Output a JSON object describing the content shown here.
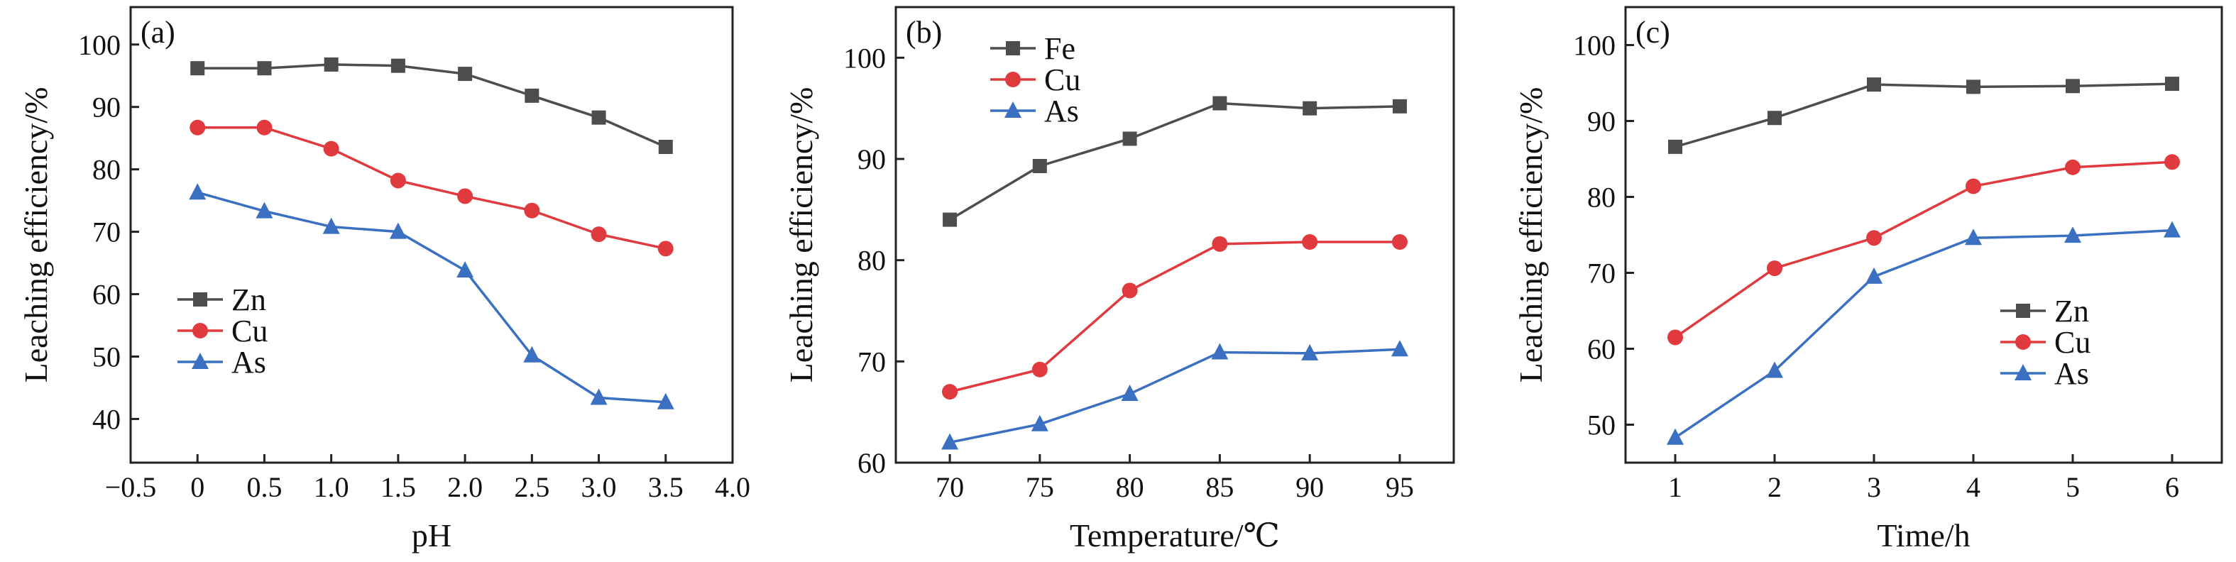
{
  "chart_data": [
    {
      "type": "line",
      "panel_label": "(a)",
      "xlabel": "pH",
      "ylabel": "Leaching efficiency/%",
      "xlim": [
        -0.5,
        4.0
      ],
      "ylim": [
        33,
        106
      ],
      "xticks": [
        -0.5,
        0,
        0.5,
        1.0,
        1.5,
        2.0,
        2.5,
        3.0,
        3.5,
        4.0
      ],
      "xtick_labels": [
        "−0.5",
        "0",
        "0.5",
        "1.0",
        "1.5",
        "2.0",
        "2.5",
        "3.0",
        "3.5",
        "4.0"
      ],
      "yticks": [
        40,
        50,
        60,
        70,
        80,
        90,
        100
      ],
      "ytick_labels": [
        "40",
        "50",
        "60",
        "70",
        "80",
        "90",
        "100"
      ],
      "legend_position": "center-left",
      "x": [
        0,
        0.5,
        1.0,
        1.5,
        2.0,
        2.5,
        3.0,
        3.5
      ],
      "series": [
        {
          "name": "Zn",
          "color": "#4d4d4d",
          "marker": "square",
          "values": [
            96.2,
            96.2,
            96.8,
            96.6,
            95.3,
            91.8,
            88.3,
            83.6
          ]
        },
        {
          "name": "Cu",
          "color": "#e03a3e",
          "marker": "circle",
          "values": [
            86.7,
            86.7,
            83.3,
            78.2,
            75.7,
            73.4,
            69.6,
            67.3
          ]
        },
        {
          "name": "As",
          "color": "#3a6fc2",
          "marker": "triangle",
          "values": [
            76.3,
            73.3,
            70.8,
            70.0,
            63.8,
            50.2,
            43.4,
            42.7
          ]
        }
      ]
    },
    {
      "type": "line",
      "panel_label": "(b)",
      "xlabel": "Temperature/℃",
      "ylabel": "Leaching efficiency/%",
      "xlim": [
        67,
        98
      ],
      "ylim": [
        60,
        105
      ],
      "xticks": [
        70,
        75,
        80,
        85,
        90,
        95
      ],
      "xtick_labels": [
        "70",
        "75",
        "80",
        "85",
        "90",
        "95"
      ],
      "yticks": [
        60,
        70,
        80,
        90,
        100
      ],
      "ytick_labels": [
        "60",
        "70",
        "80",
        "90",
        "100"
      ],
      "legend_position": "top-left",
      "x": [
        70,
        75,
        80,
        85,
        90,
        95
      ],
      "series": [
        {
          "name": "Fe",
          "color": "#4d4d4d",
          "marker": "square",
          "values": [
            84.0,
            89.3,
            92.0,
            95.5,
            95.0,
            95.2
          ]
        },
        {
          "name": "Cu",
          "color": "#e03a3e",
          "marker": "circle",
          "values": [
            67.0,
            69.2,
            77.0,
            81.6,
            81.8,
            81.8
          ]
        },
        {
          "name": "As",
          "color": "#3a6fc2",
          "marker": "triangle",
          "values": [
            62.0,
            63.8,
            66.8,
            70.9,
            70.8,
            71.2
          ]
        }
      ]
    },
    {
      "type": "line",
      "panel_label": "(c)",
      "xlabel": "Time/h",
      "ylabel": "Leaching efficiency/%",
      "xlim": [
        0.5,
        6.5
      ],
      "ylim": [
        45,
        105
      ],
      "xticks": [
        1,
        2,
        3,
        4,
        5,
        6
      ],
      "xtick_labels": [
        "1",
        "2",
        "3",
        "4",
        "5",
        "6"
      ],
      "yticks": [
        50,
        60,
        70,
        80,
        90,
        100
      ],
      "ytick_labels": [
        "50",
        "60",
        "70",
        "80",
        "90",
        "100"
      ],
      "legend_position": "center-right",
      "x": [
        1,
        2,
        3,
        4,
        5,
        6
      ],
      "series": [
        {
          "name": "Zn",
          "color": "#4d4d4d",
          "marker": "square",
          "values": [
            86.6,
            90.4,
            94.8,
            94.5,
            94.6,
            94.9
          ]
        },
        {
          "name": "Cu",
          "color": "#e03a3e",
          "marker": "circle",
          "values": [
            61.5,
            70.6,
            74.6,
            81.4,
            83.9,
            84.6
          ]
        },
        {
          "name": "As",
          "color": "#3a6fc2",
          "marker": "triangle",
          "values": [
            48.3,
            57.1,
            69.5,
            74.6,
            74.9,
            75.6
          ]
        }
      ]
    }
  ]
}
